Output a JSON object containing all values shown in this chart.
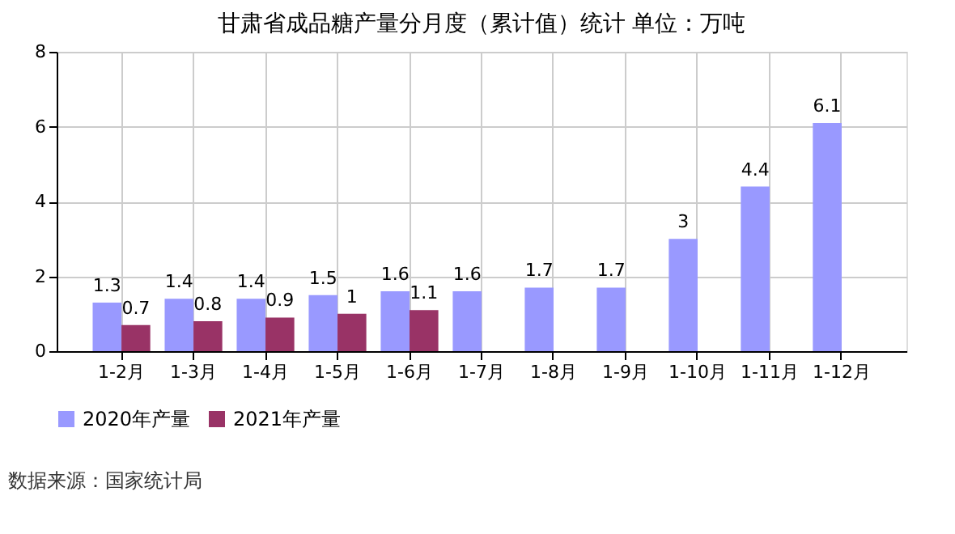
{
  "chart_data": {
    "type": "bar",
    "title": "甘肃省成品糖产量分月度（累计值）统计 单位：万吨",
    "categories": [
      "1-2月",
      "1-3月",
      "1-4月",
      "1-5月",
      "1-6月",
      "1-7月",
      "1-8月",
      "1-9月",
      "1-10月",
      "1-11月",
      "1-12月"
    ],
    "series": [
      {
        "name": "2020年产量",
        "color": "#9999ff",
        "values": [
          1.3,
          1.4,
          1.4,
          1.5,
          1.6,
          1.6,
          1.7,
          1.7,
          3,
          4.4,
          6.1
        ]
      },
      {
        "name": "2021年产量",
        "color": "#993366",
        "values": [
          0.7,
          0.8,
          0.9,
          1,
          1.1,
          null,
          null,
          null,
          null,
          null,
          null
        ]
      }
    ],
    "ylim": [
      0,
      8
    ],
    "yticks": [
      0,
      2,
      4,
      6,
      8
    ],
    "grid": true,
    "legend": "bottom",
    "data_labels": true,
    "annotations": [
      "数据来源：国家统计局"
    ]
  }
}
